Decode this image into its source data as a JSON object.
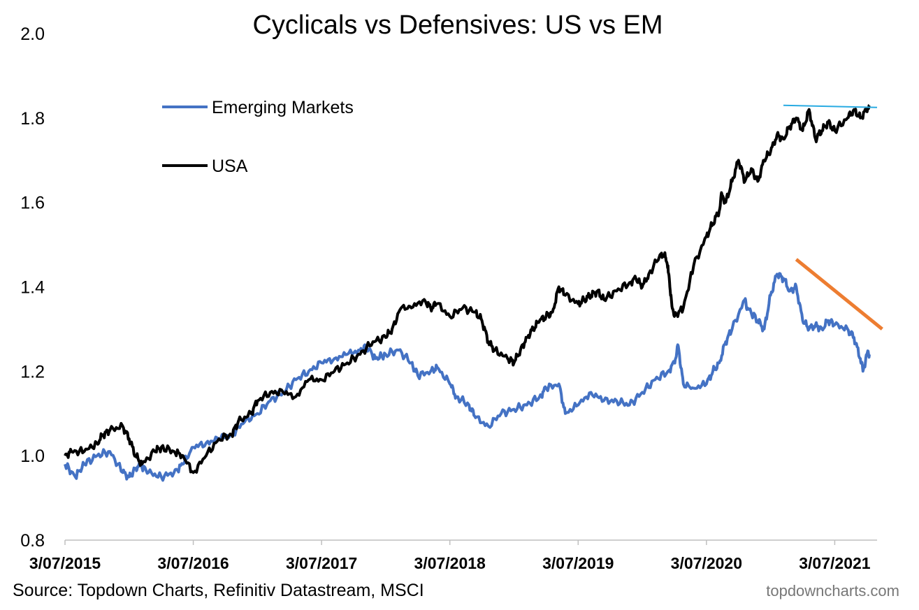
{
  "chart_data": {
    "type": "line",
    "title": "Cyclicals vs Defensives: US vs EM",
    "xlabel": "",
    "ylabel": "",
    "ylim": [
      0.8,
      2.0
    ],
    "y_ticks": [
      "0.8",
      "1.0",
      "1.2",
      "1.4",
      "1.6",
      "1.8",
      "2.0"
    ],
    "x_range": [
      2015.0,
      2021.33
    ],
    "x_ticks": [
      {
        "x": 2015.0,
        "label": "3/07/2015"
      },
      {
        "x": 2016.0,
        "label": "3/07/2016"
      },
      {
        "x": 2017.0,
        "label": "3/07/2017"
      },
      {
        "x": 2018.0,
        "label": "3/07/2018"
      },
      {
        "x": 2019.0,
        "label": "3/07/2019"
      },
      {
        "x": 2020.0,
        "label": "3/07/2020"
      },
      {
        "x": 2021.0,
        "label": "3/07/2021"
      }
    ],
    "grid": false,
    "legend_position": "top-left",
    "series": [
      {
        "name": "Emerging Markets",
        "color": "#4472C4",
        "x": [
          2015.0,
          2015.08,
          2015.15,
          2015.25,
          2015.35,
          2015.45,
          2015.5,
          2015.55,
          2015.58,
          2015.65,
          2015.75,
          2015.85,
          2015.92,
          2016.0,
          2016.1,
          2016.2,
          2016.3,
          2016.4,
          2016.5,
          2016.6,
          2016.7,
          2016.8,
          2016.9,
          2017.0,
          2017.1,
          2017.2,
          2017.3,
          2017.35,
          2017.42,
          2017.5,
          2017.6,
          2017.7,
          2017.75,
          2017.85,
          2017.9,
          2018.0,
          2018.05,
          2018.15,
          2018.2,
          2018.3,
          2018.4,
          2018.5,
          2018.6,
          2018.7,
          2018.75,
          2018.85,
          2018.9,
          2019.0,
          2019.1,
          2019.2,
          2019.3,
          2019.4,
          2019.5,
          2019.6,
          2019.7,
          2019.75,
          2019.78,
          2019.82,
          2019.9,
          2020.0,
          2020.05,
          2020.1,
          2020.15,
          2020.2,
          2020.3,
          2020.32,
          2020.4,
          2020.45,
          2020.5,
          2020.55,
          2020.6,
          2020.65,
          2020.7,
          2020.75,
          2020.8,
          2020.85,
          2020.9,
          2020.95,
          2021.0,
          2021.1,
          2021.15,
          2021.2,
          2021.22,
          2021.25,
          2021.27
        ],
        "values": [
          0.98,
          0.95,
          0.98,
          1.0,
          1.01,
          0.96,
          0.95,
          0.97,
          0.98,
          0.96,
          0.95,
          0.96,
          0.98,
          1.02,
          1.03,
          1.04,
          1.05,
          1.08,
          1.1,
          1.13,
          1.15,
          1.18,
          1.2,
          1.22,
          1.23,
          1.24,
          1.25,
          1.26,
          1.23,
          1.24,
          1.25,
          1.22,
          1.19,
          1.2,
          1.21,
          1.17,
          1.14,
          1.12,
          1.09,
          1.07,
          1.1,
          1.11,
          1.12,
          1.14,
          1.16,
          1.17,
          1.1,
          1.12,
          1.15,
          1.13,
          1.13,
          1.12,
          1.15,
          1.18,
          1.2,
          1.22,
          1.26,
          1.17,
          1.16,
          1.17,
          1.2,
          1.22,
          1.27,
          1.3,
          1.37,
          1.35,
          1.32,
          1.3,
          1.38,
          1.43,
          1.42,
          1.39,
          1.4,
          1.32,
          1.3,
          1.31,
          1.3,
          1.32,
          1.31,
          1.3,
          1.28,
          1.23,
          1.2,
          1.24,
          1.24
        ]
      },
      {
        "name": "USA",
        "color": "#000000",
        "x": [
          2015.0,
          2015.05,
          2015.15,
          2015.25,
          2015.3,
          2015.35,
          2015.45,
          2015.5,
          2015.55,
          2015.6,
          2015.7,
          2015.75,
          2015.85,
          2015.92,
          2016.0,
          2016.1,
          2016.2,
          2016.3,
          2016.35,
          2016.45,
          2016.5,
          2016.6,
          2016.7,
          2016.8,
          2016.9,
          2017.0,
          2017.1,
          2017.2,
          2017.3,
          2017.4,
          2017.5,
          2017.55,
          2017.62,
          2017.7,
          2017.8,
          2017.85,
          2017.9,
          2018.0,
          2018.1,
          2018.2,
          2018.25,
          2018.3,
          2018.35,
          2018.45,
          2018.5,
          2018.55,
          2018.6,
          2018.65,
          2018.7,
          2018.75,
          2018.8,
          2018.85,
          2018.9,
          2019.0,
          2019.05,
          2019.1,
          2019.15,
          2019.2,
          2019.3,
          2019.4,
          2019.45,
          2019.5,
          2019.55,
          2019.65,
          2019.68,
          2019.7,
          2019.72,
          2019.75,
          2019.82,
          2019.9,
          2020.0,
          2020.05,
          2020.1,
          2020.12,
          2020.15,
          2020.2,
          2020.25,
          2020.3,
          2020.35,
          2020.4,
          2020.45,
          2020.5,
          2020.55,
          2020.6,
          2020.65,
          2020.7,
          2020.75,
          2020.8,
          2020.85,
          2020.9,
          2020.95,
          2021.0,
          2021.1,
          2021.15,
          2021.2,
          2021.25,
          2021.27
        ],
        "values": [
          1.0,
          1.01,
          1.01,
          1.03,
          1.05,
          1.06,
          1.07,
          1.04,
          1.0,
          0.98,
          1.01,
          1.02,
          1.01,
          1.0,
          0.96,
          1.0,
          1.04,
          1.05,
          1.08,
          1.1,
          1.13,
          1.15,
          1.15,
          1.14,
          1.18,
          1.18,
          1.2,
          1.22,
          1.24,
          1.27,
          1.28,
          1.3,
          1.35,
          1.35,
          1.37,
          1.35,
          1.36,
          1.33,
          1.35,
          1.34,
          1.32,
          1.27,
          1.25,
          1.23,
          1.22,
          1.25,
          1.28,
          1.3,
          1.32,
          1.33,
          1.34,
          1.4,
          1.38,
          1.36,
          1.37,
          1.38,
          1.39,
          1.37,
          1.39,
          1.41,
          1.42,
          1.4,
          1.43,
          1.48,
          1.47,
          1.45,
          1.38,
          1.33,
          1.35,
          1.45,
          1.52,
          1.55,
          1.58,
          1.62,
          1.6,
          1.65,
          1.7,
          1.65,
          1.68,
          1.65,
          1.7,
          1.72,
          1.76,
          1.75,
          1.78,
          1.8,
          1.77,
          1.82,
          1.75,
          1.77,
          1.79,
          1.77,
          1.8,
          1.82,
          1.8,
          1.82,
          1.83
        ]
      }
    ],
    "annotations": [
      {
        "name": "us-resistance-line",
        "color": "#29ABE2",
        "x": [
          2020.6,
          2021.33
        ],
        "values": [
          1.83,
          1.825
        ]
      },
      {
        "name": "em-downtrend-line",
        "color": "#ED7D31",
        "x": [
          2020.7,
          2021.37
        ],
        "values": [
          1.465,
          1.3
        ]
      }
    ]
  },
  "footer": {
    "source": "Source: Topdown Charts, Refinitiv Datastream, MSCI",
    "brand": "topdowncharts.com"
  }
}
